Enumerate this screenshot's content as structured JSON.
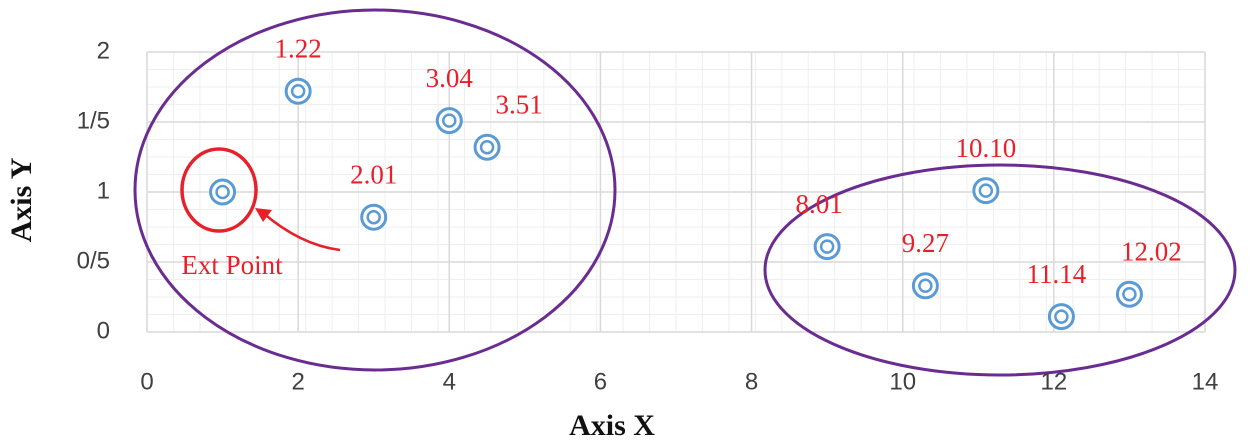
{
  "chart_data": {
    "type": "scatter",
    "x_label": "Axis X",
    "y_label": "Axis Y",
    "xlim": [
      0,
      14
    ],
    "xticks": [
      0,
      2,
      4,
      6,
      8,
      10,
      12,
      14
    ],
    "ylim": [
      0,
      2
    ],
    "yticks": [
      0,
      {
        "value": 0.5,
        "label": "0/5"
      },
      1,
      {
        "value": 1.5,
        "label": "1/5"
      },
      2
    ],
    "grid": true,
    "series": [
      {
        "color": "#5b9bd5",
        "x": [
          1,
          2,
          3,
          4,
          4.5,
          9,
          10.3,
          11.1,
          12.1,
          13
        ],
        "values": [
          1.0,
          1.72,
          0.82,
          1.51,
          1.32,
          0.61,
          0.33,
          1.01,
          0.11,
          0.27
        ],
        "point_labels": [
          null,
          "1.22",
          "2.01",
          "3.04",
          "3.51",
          "8.01",
          "9.27",
          "10.10",
          "11.14",
          "12.02"
        ],
        "point_label_color": "#e8202a"
      }
    ],
    "annotations": [
      {
        "text": "Ext Point",
        "color": "#e8202a"
      }
    ]
  }
}
